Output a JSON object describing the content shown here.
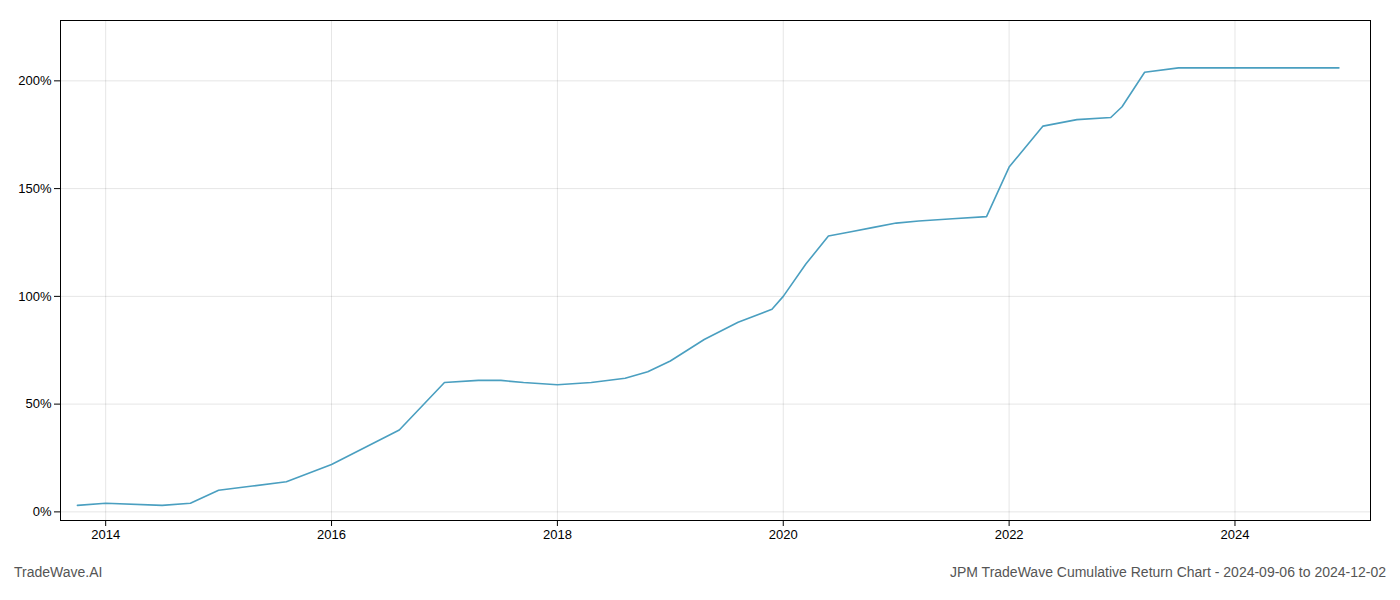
{
  "chart_data": {
    "type": "line",
    "title": "JPM TradeWave Cumulative Return Chart - 2024-09-06 to 2024-12-02",
    "annotations": [
      "TradeWave.AI"
    ],
    "x": [
      2013.75,
      2014.0,
      2014.5,
      2014.75,
      2015.0,
      2015.3,
      2015.6,
      2016.0,
      2016.3,
      2016.6,
      2017.0,
      2017.3,
      2017.5,
      2017.7,
      2018.0,
      2018.3,
      2018.6,
      2018.8,
      2019.0,
      2019.3,
      2019.6,
      2019.9,
      2020.0,
      2020.2,
      2020.4,
      2020.6,
      2020.8,
      2021.0,
      2021.2,
      2021.5,
      2021.8,
      2022.0,
      2022.3,
      2022.6,
      2022.9,
      2023.0,
      2023.2,
      2023.5,
      2023.7,
      2023.9,
      2024.0,
      2024.5,
      2024.92
    ],
    "values": [
      0.03,
      0.04,
      0.03,
      0.04,
      0.1,
      0.12,
      0.14,
      0.22,
      0.3,
      0.38,
      0.6,
      0.61,
      0.61,
      0.6,
      0.59,
      0.6,
      0.62,
      0.65,
      0.7,
      0.8,
      0.88,
      0.94,
      1.0,
      1.15,
      1.28,
      1.3,
      1.32,
      1.34,
      1.35,
      1.36,
      1.37,
      1.6,
      1.79,
      1.82,
      1.83,
      1.88,
      2.04,
      2.06,
      2.06,
      2.06,
      2.06,
      2.06,
      2.06
    ],
    "color": "#4a9fc0",
    "xlim": [
      2013.6,
      2025.2
    ],
    "xticks": [
      2014,
      2016,
      2018,
      2020,
      2022,
      2024
    ],
    "ylim": [
      -0.04,
      2.28
    ],
    "yticks": [
      {
        "value": 0.0,
        "label": "0%"
      },
      {
        "value": 0.5,
        "label": "50%"
      },
      {
        "value": 1.0,
        "label": "100%"
      },
      {
        "value": 1.5,
        "label": "150%"
      },
      {
        "value": 2.0,
        "label": "200%"
      }
    ],
    "grid": true
  }
}
